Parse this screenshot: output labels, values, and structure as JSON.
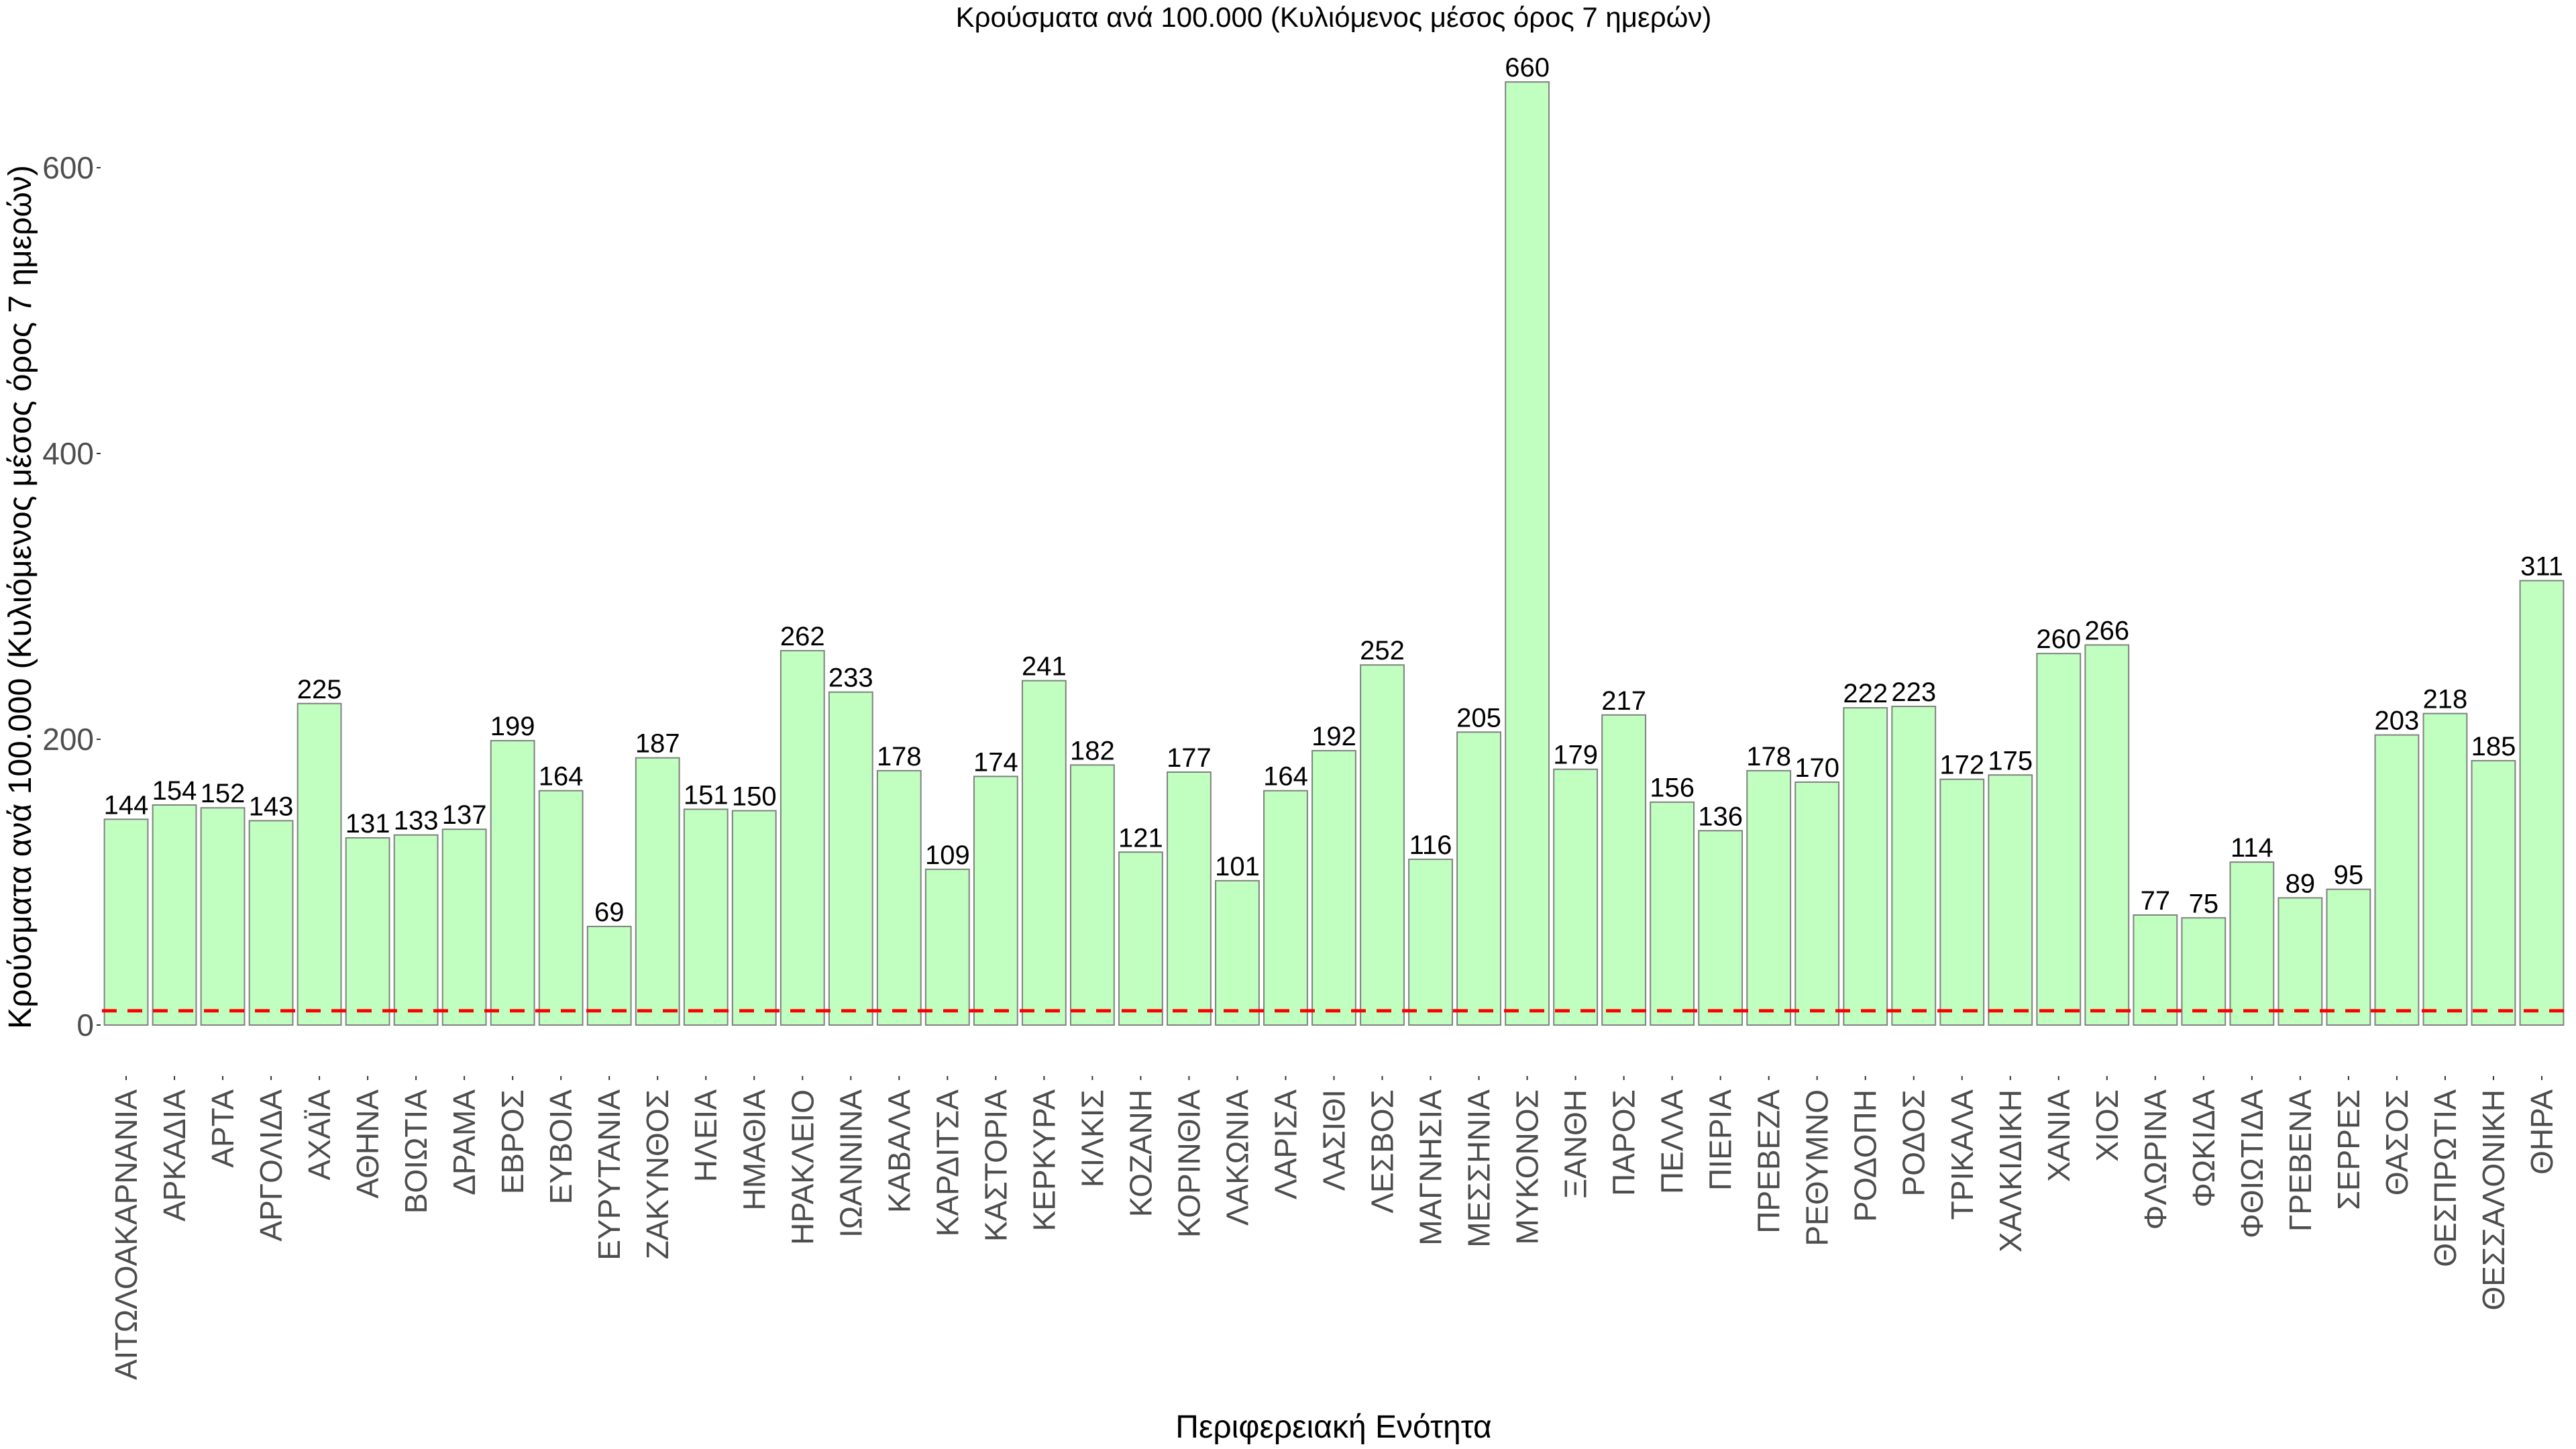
{
  "chart_data": {
    "type": "bar",
    "title": "Κρούσματα ανά 100.000 (Κυλιόμενος μέσος όρος 7 ημερών)",
    "xlabel": "Περιφερειακή Ενότητα",
    "ylabel": "Κρούσματα ανά 100.000 (Κυλιόμενος μέσος όρος 7 ημερών)",
    "ylim": [
      0,
      670
    ],
    "yticks": [
      0,
      200,
      400,
      600
    ],
    "grid": false,
    "reference_line": {
      "value": 10,
      "style": "dashed",
      "color": "#ff0000"
    },
    "bar_color": "#c0ffc0",
    "bar_edge_color": "#808080",
    "categories": [
      "ΑΙΤΩΛΟΑΚΑΡΝΑΝΙΑ",
      "ΑΡΚΑΔΙΑ",
      "ΑΡΤΑ",
      "ΑΡΓΟΛΙΔΑ",
      "ΑΧΑΪΑ",
      "ΑΘΗΝΑ",
      "ΒΟΙΩΤΙΑ",
      "ΔΡΑΜΑ",
      "ΕΒΡΟΣ",
      "ΕΥΒΟΙΑ",
      "ΕΥΡΥΤΑΝΙΑ",
      "ΖΑΚΥΝΘΟΣ",
      "ΗΛΕΙΑ",
      "ΗΜΑΘΙΑ",
      "ΗΡΑΚΛΕΙΟ",
      "ΙΩΑΝΝΙΝΑ",
      "ΚΑΒΑΛΑ",
      "ΚΑΡΔΙΤΣΑ",
      "ΚΑΣΤΟΡΙΑ",
      "ΚΕΡΚΥΡΑ",
      "ΚΙΛΚΙΣ",
      "ΚΟΖΑΝΗ",
      "ΚΟΡΙΝΘΙΑ",
      "ΛΑΚΩΝΙΑ",
      "ΛΑΡΙΣΑ",
      "ΛΑΣΙΘΙ",
      "ΛΕΣΒΟΣ",
      "ΜΑΓΝΗΣΙΑ",
      "ΜΕΣΣΗΝΙΑ",
      "ΜΥΚΟΝΟΣ",
      "ΞΑΝΘΗ",
      "ΠΑΡΟΣ",
      "ΠΕΛΛΑ",
      "ΠΙΕΡΙΑ",
      "ΠΡΕΒΕΖΑ",
      "ΡΕΘΥΜΝΟ",
      "ΡΟΔΟΠΗ",
      "ΡΟΔΟΣ",
      "ΤΡΙΚΑΛΑ",
      "ΧΑΛΚΙΔΙΚΗ",
      "ΧΑΝΙΑ",
      "ΧΙΟΣ",
      "ΦΛΩΡΙΝΑ",
      "ΦΩΚΙΔΑ",
      "ΦΘΙΩΤΙΔΑ",
      "ΓΡΕΒΕΝΑ",
      "ΣΕΡΡΕΣ",
      "ΘΑΣΟΣ",
      "ΘΕΣΠΡΩΤΙΑ",
      "ΘΕΣΣΑΛΟΝΙΚΗ",
      "ΘΗΡΑ"
    ],
    "values": [
      144,
      154,
      152,
      143,
      225,
      131,
      133,
      137,
      199,
      164,
      69,
      187,
      151,
      150,
      262,
      233,
      178,
      109,
      174,
      241,
      182,
      121,
      177,
      101,
      164,
      192,
      252,
      116,
      205,
      660,
      179,
      217,
      156,
      136,
      178,
      170,
      222,
      223,
      172,
      175,
      260,
      266,
      77,
      75,
      114,
      89,
      95,
      203,
      218,
      185,
      311
    ]
  }
}
